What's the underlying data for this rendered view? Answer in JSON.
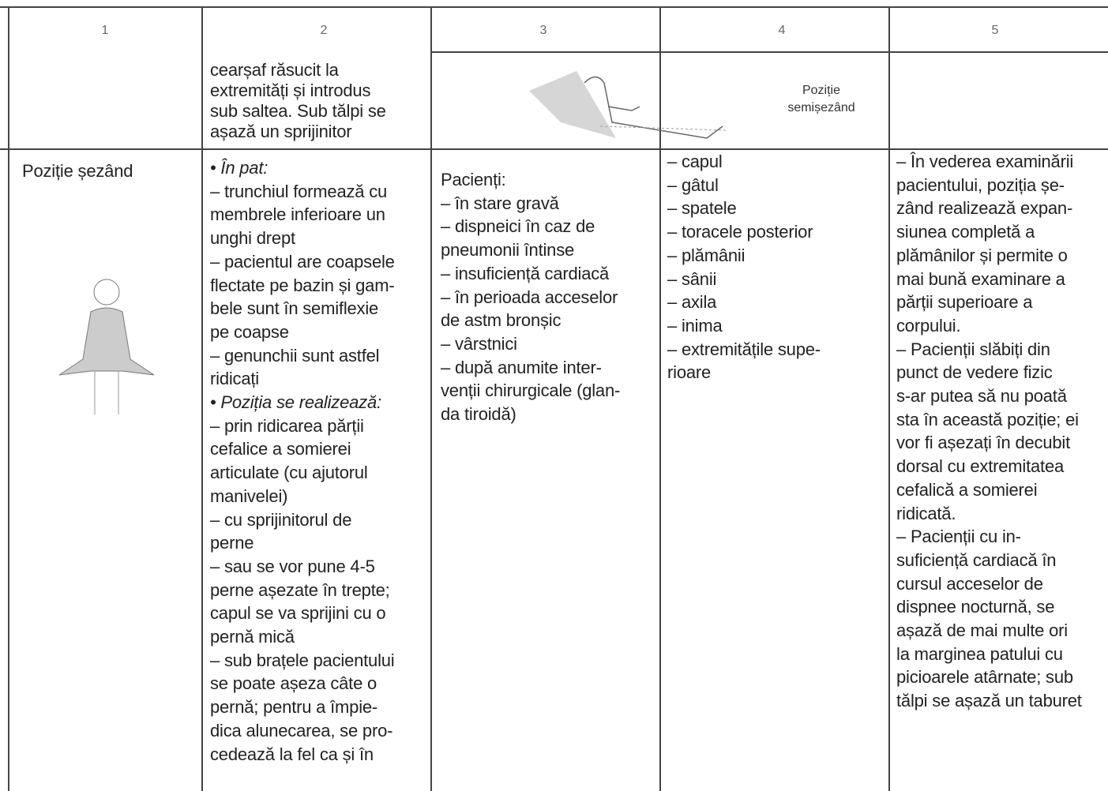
{
  "header": {
    "columns": [
      "1",
      "2",
      "3",
      "4",
      "5"
    ]
  },
  "row_continued": {
    "col2": [
      "cearșaf răsucit la",
      "extremități și introdus",
      "sub saltea. Sub tălpi se",
      "așază un sprijinitor"
    ],
    "image_label": [
      "Poziție",
      "semișezând"
    ]
  },
  "row_sitting": {
    "title": "Poziție șezând",
    "col2": [
      "• În pat:",
      "– trunchiul formează cu",
      "membrele inferioare un",
      "unghi drept",
      "– pacientul are coapsele",
      "flectate pe bazin și gam-",
      "bele sunt în semiflexie",
      "pe coapse",
      "– genunchii sunt astfel",
      "ridicați",
      "• Poziția se realizează:",
      "– prin ridicarea părții",
      "cefalice a somierei",
      "articulate (cu ajutorul",
      "manivelei)",
      "– cu sprijinitorul de",
      "perne",
      "– sau se vor pune 4-5",
      "perne așezate în trepte;",
      "capul se va sprijini cu o",
      "pernă mică",
      "– sub brațele pacientului",
      "se poate așeza câte o",
      "pernă; pentru a împie-",
      "dica alunecarea, se pro-",
      "cedează la fel ca și în"
    ],
    "col3": [
      "Pacienți:",
      "– în stare gravă",
      "– dispneici în caz de",
      "pneumonii întinse",
      "– insuficiență cardiacă",
      "– în perioada acceselor",
      "de astm bronșic",
      "– vârstnici",
      "– după anumite inter-",
      "venții chirurgicale (glan-",
      "da tiroidă)"
    ],
    "col4": [
      "– capul",
      "– gâtul",
      "– spatele",
      "– toracele posterior",
      "– plămânii",
      "– sânii",
      "– axila",
      "– inima",
      "– extremitățile supe-",
      "rioare"
    ],
    "col5": [
      "– În vederea examinării",
      "pacientului, poziția șe-",
      "zând realizează expan-",
      "siunea completă a",
      "plămânilor și permite o",
      "mai bună examinare a",
      "părții superioare a",
      "corpului.",
      "– Pacienții slăbiți din",
      "punct de vedere fizic",
      "s-ar putea să nu poată",
      "sta în această poziție; ei",
      "vor fi așezați în decubit",
      "dorsal cu extremitatea",
      "cefalică a somierei",
      "ridicată.",
      "– Pacienții cu in-",
      "suficiență cardiacă în",
      "cursul acceselor de",
      "dispnee nocturnă, se",
      "așază de mai multe ori",
      "la marginea patului cu",
      "picioarele atârnate; sub",
      "tălpi se așază un taburet"
    ]
  }
}
